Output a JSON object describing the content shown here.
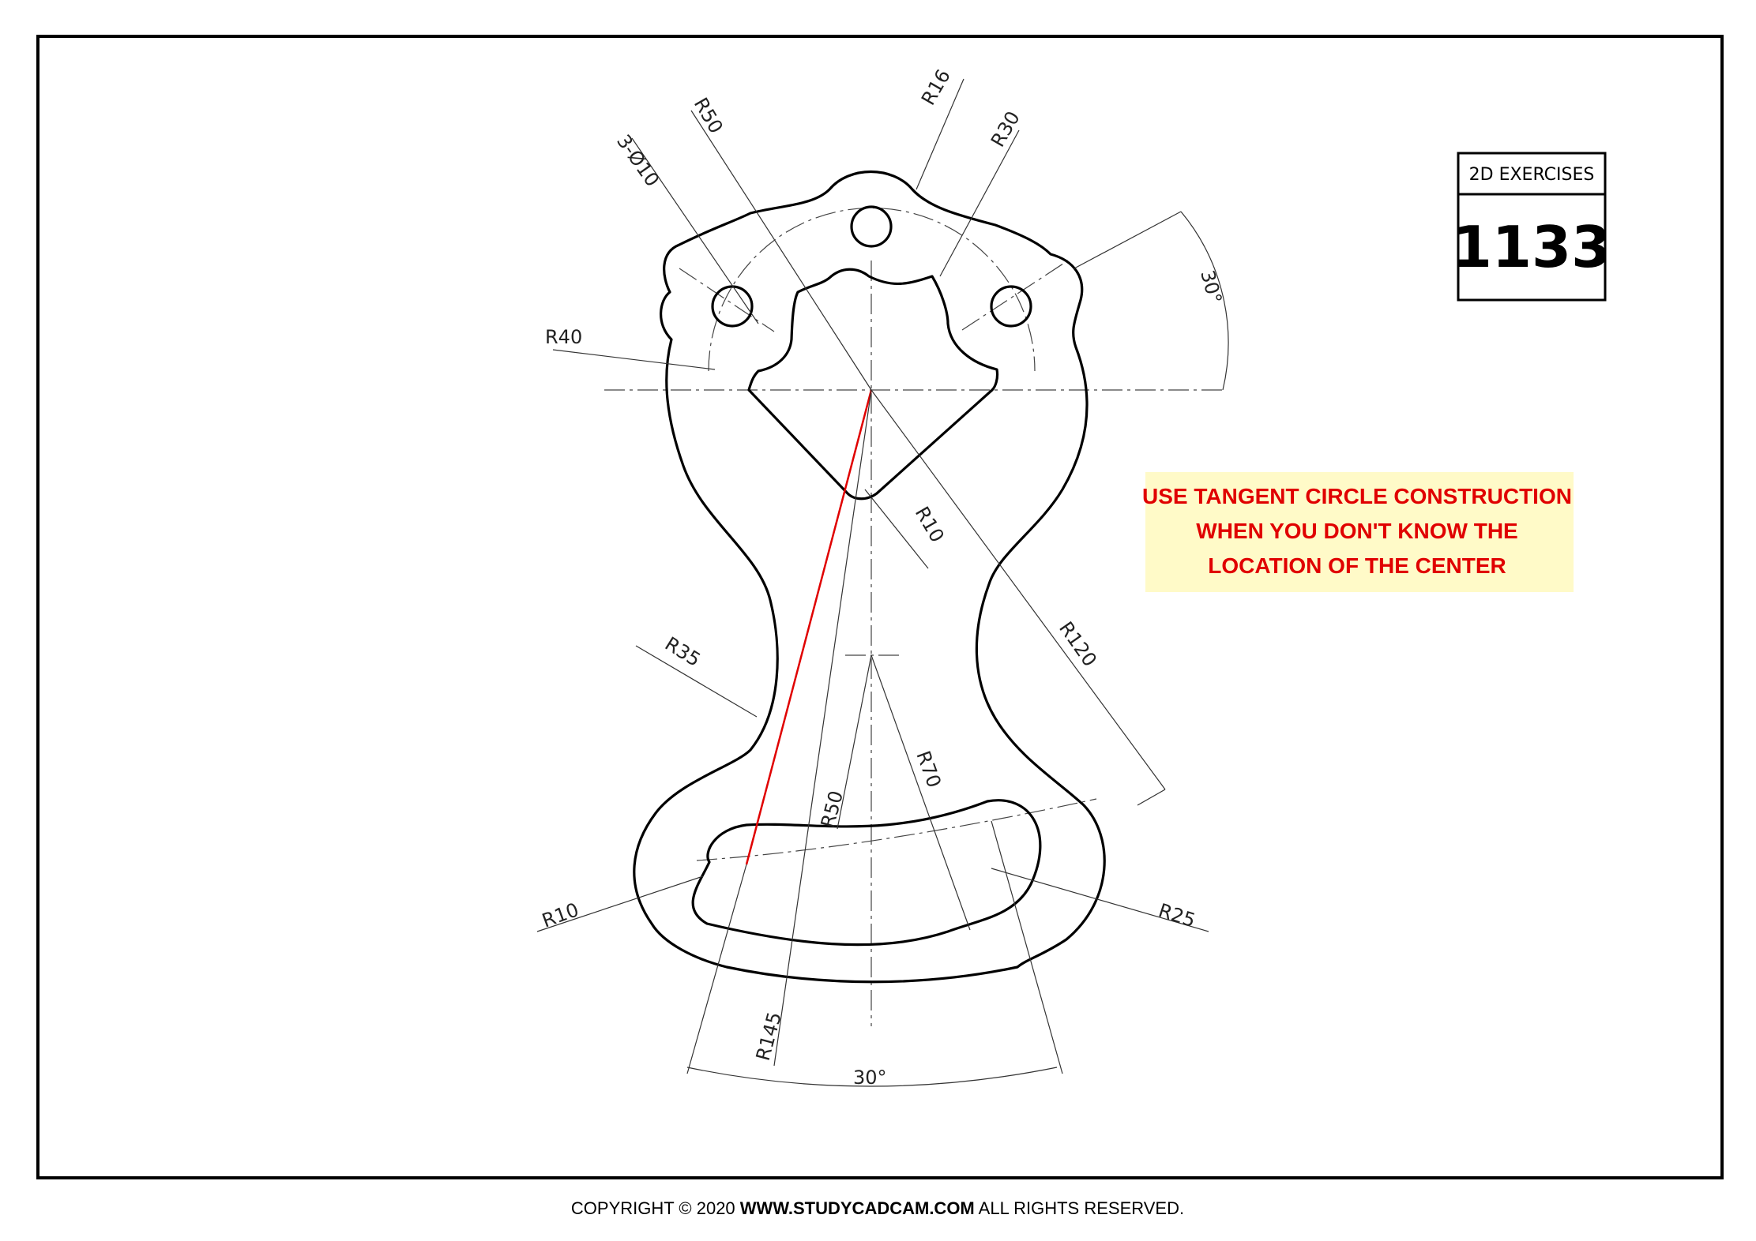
{
  "exercise": {
    "header": "2D EXERCISES",
    "number": "1133"
  },
  "note": {
    "line1": "USE TANGENT CIRCLE CONSTRUCTION",
    "line2": "WHEN YOU DON'T KNOW THE",
    "line3": "LOCATION OF THE CENTER"
  },
  "dimensions": {
    "r16": "R16",
    "r50_top": "R50",
    "r30": "R30",
    "holes": "3-Ø10",
    "r40": "R40",
    "angle_top": "30°",
    "r10_mid": "R10",
    "r35": "R35",
    "r120": "R120",
    "r70": "R70",
    "r50_low": "R50",
    "r10_low": "R10",
    "r25": "R25",
    "r145": "R145",
    "angle_bottom": "30°"
  },
  "copyright": {
    "prefix": "COPYRIGHT © 2020 ",
    "site": "WWW.STUDYCADCAM.COM",
    "suffix": " ALL RIGHTS RESERVED."
  },
  "colors": {
    "note_text": "#e00000",
    "note_background": "#fffac8",
    "construction_line": "#e00000"
  }
}
